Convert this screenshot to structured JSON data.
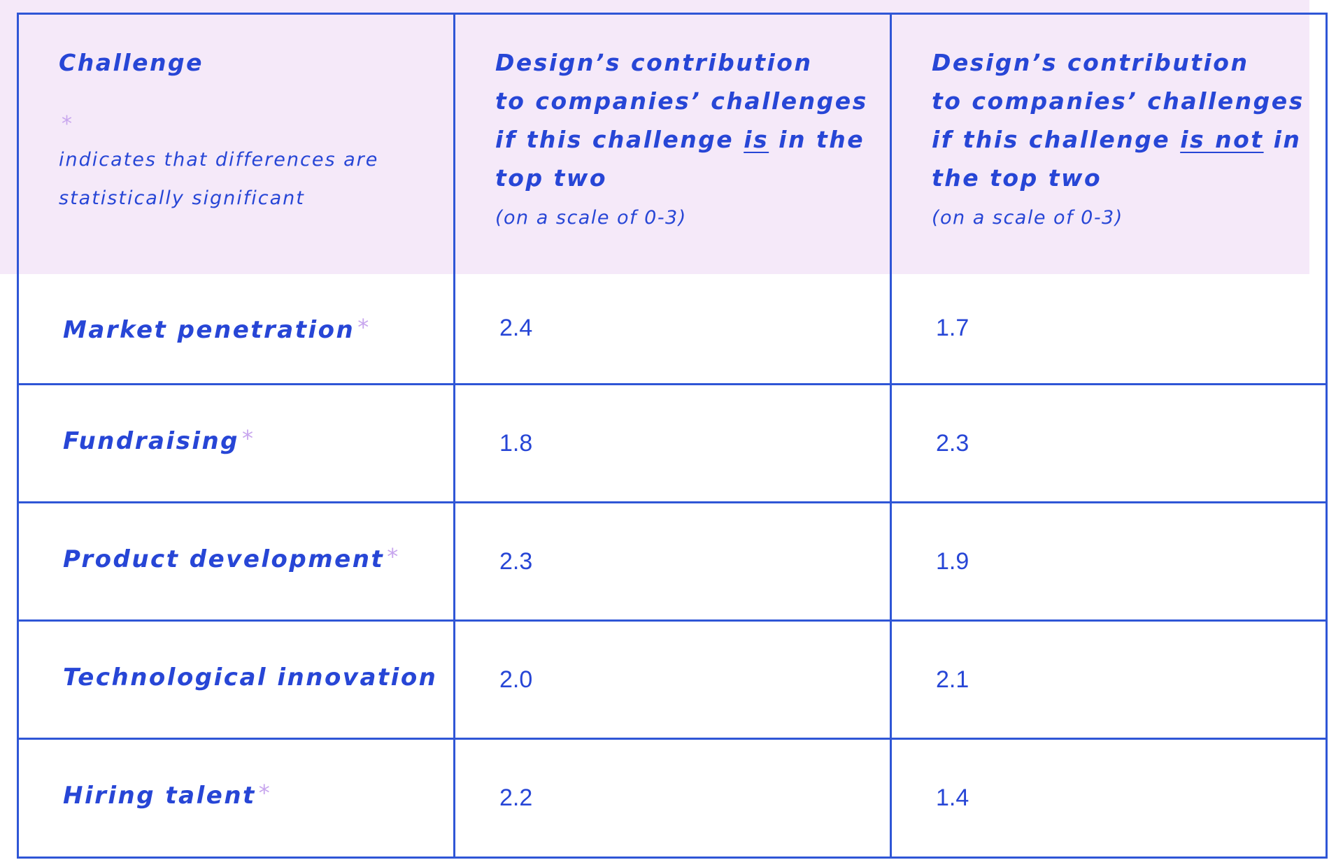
{
  "chart_data": {
    "type": "table",
    "columns": [
      {
        "title_lines": [
          "Challenge"
        ],
        "note_marker": "*",
        "note_text_lines": [
          "indicates that differences are",
          "statistically significant"
        ]
      },
      {
        "title_lines": [
          "Design’s contribution",
          "to companies’ challenges"
        ],
        "title_line3_before": "if this challenge ",
        "title_line3_underlined": "is",
        "title_line3_after": " in the",
        "title_line4": "top two",
        "scale": "(on a scale of 0-3)"
      },
      {
        "title_lines": [
          "Design’s contribution",
          "to companies’ challenges"
        ],
        "title_line3_before": "if this challenge ",
        "title_line3_underlined": "is not",
        "title_line3_after": " in",
        "title_line4": "the top two",
        "scale": "(on a scale of 0-3)"
      }
    ],
    "rows": [
      {
        "challenge": "Market penetration",
        "significant": true,
        "in_top_two": "2.4",
        "not_in_top_two": "1.7"
      },
      {
        "challenge": "Fundraising",
        "significant": true,
        "in_top_two": "1.8",
        "not_in_top_two": "2.3"
      },
      {
        "challenge": "Product development",
        "significant": true,
        "in_top_two": "2.3",
        "not_in_top_two": "1.9"
      },
      {
        "challenge": "Technological innovation",
        "significant": false,
        "in_top_two": "2.0",
        "not_in_top_two": "2.1"
      },
      {
        "challenge": "Hiring talent",
        "significant": true,
        "in_top_two": "2.2",
        "not_in_top_two": "1.4"
      }
    ],
    "significance_marker": "*"
  },
  "colors": {
    "text": "#2746d6",
    "grid_line": "#2f56d6",
    "header_background": "#f5e9f9",
    "marker": "#c8a6ee"
  }
}
